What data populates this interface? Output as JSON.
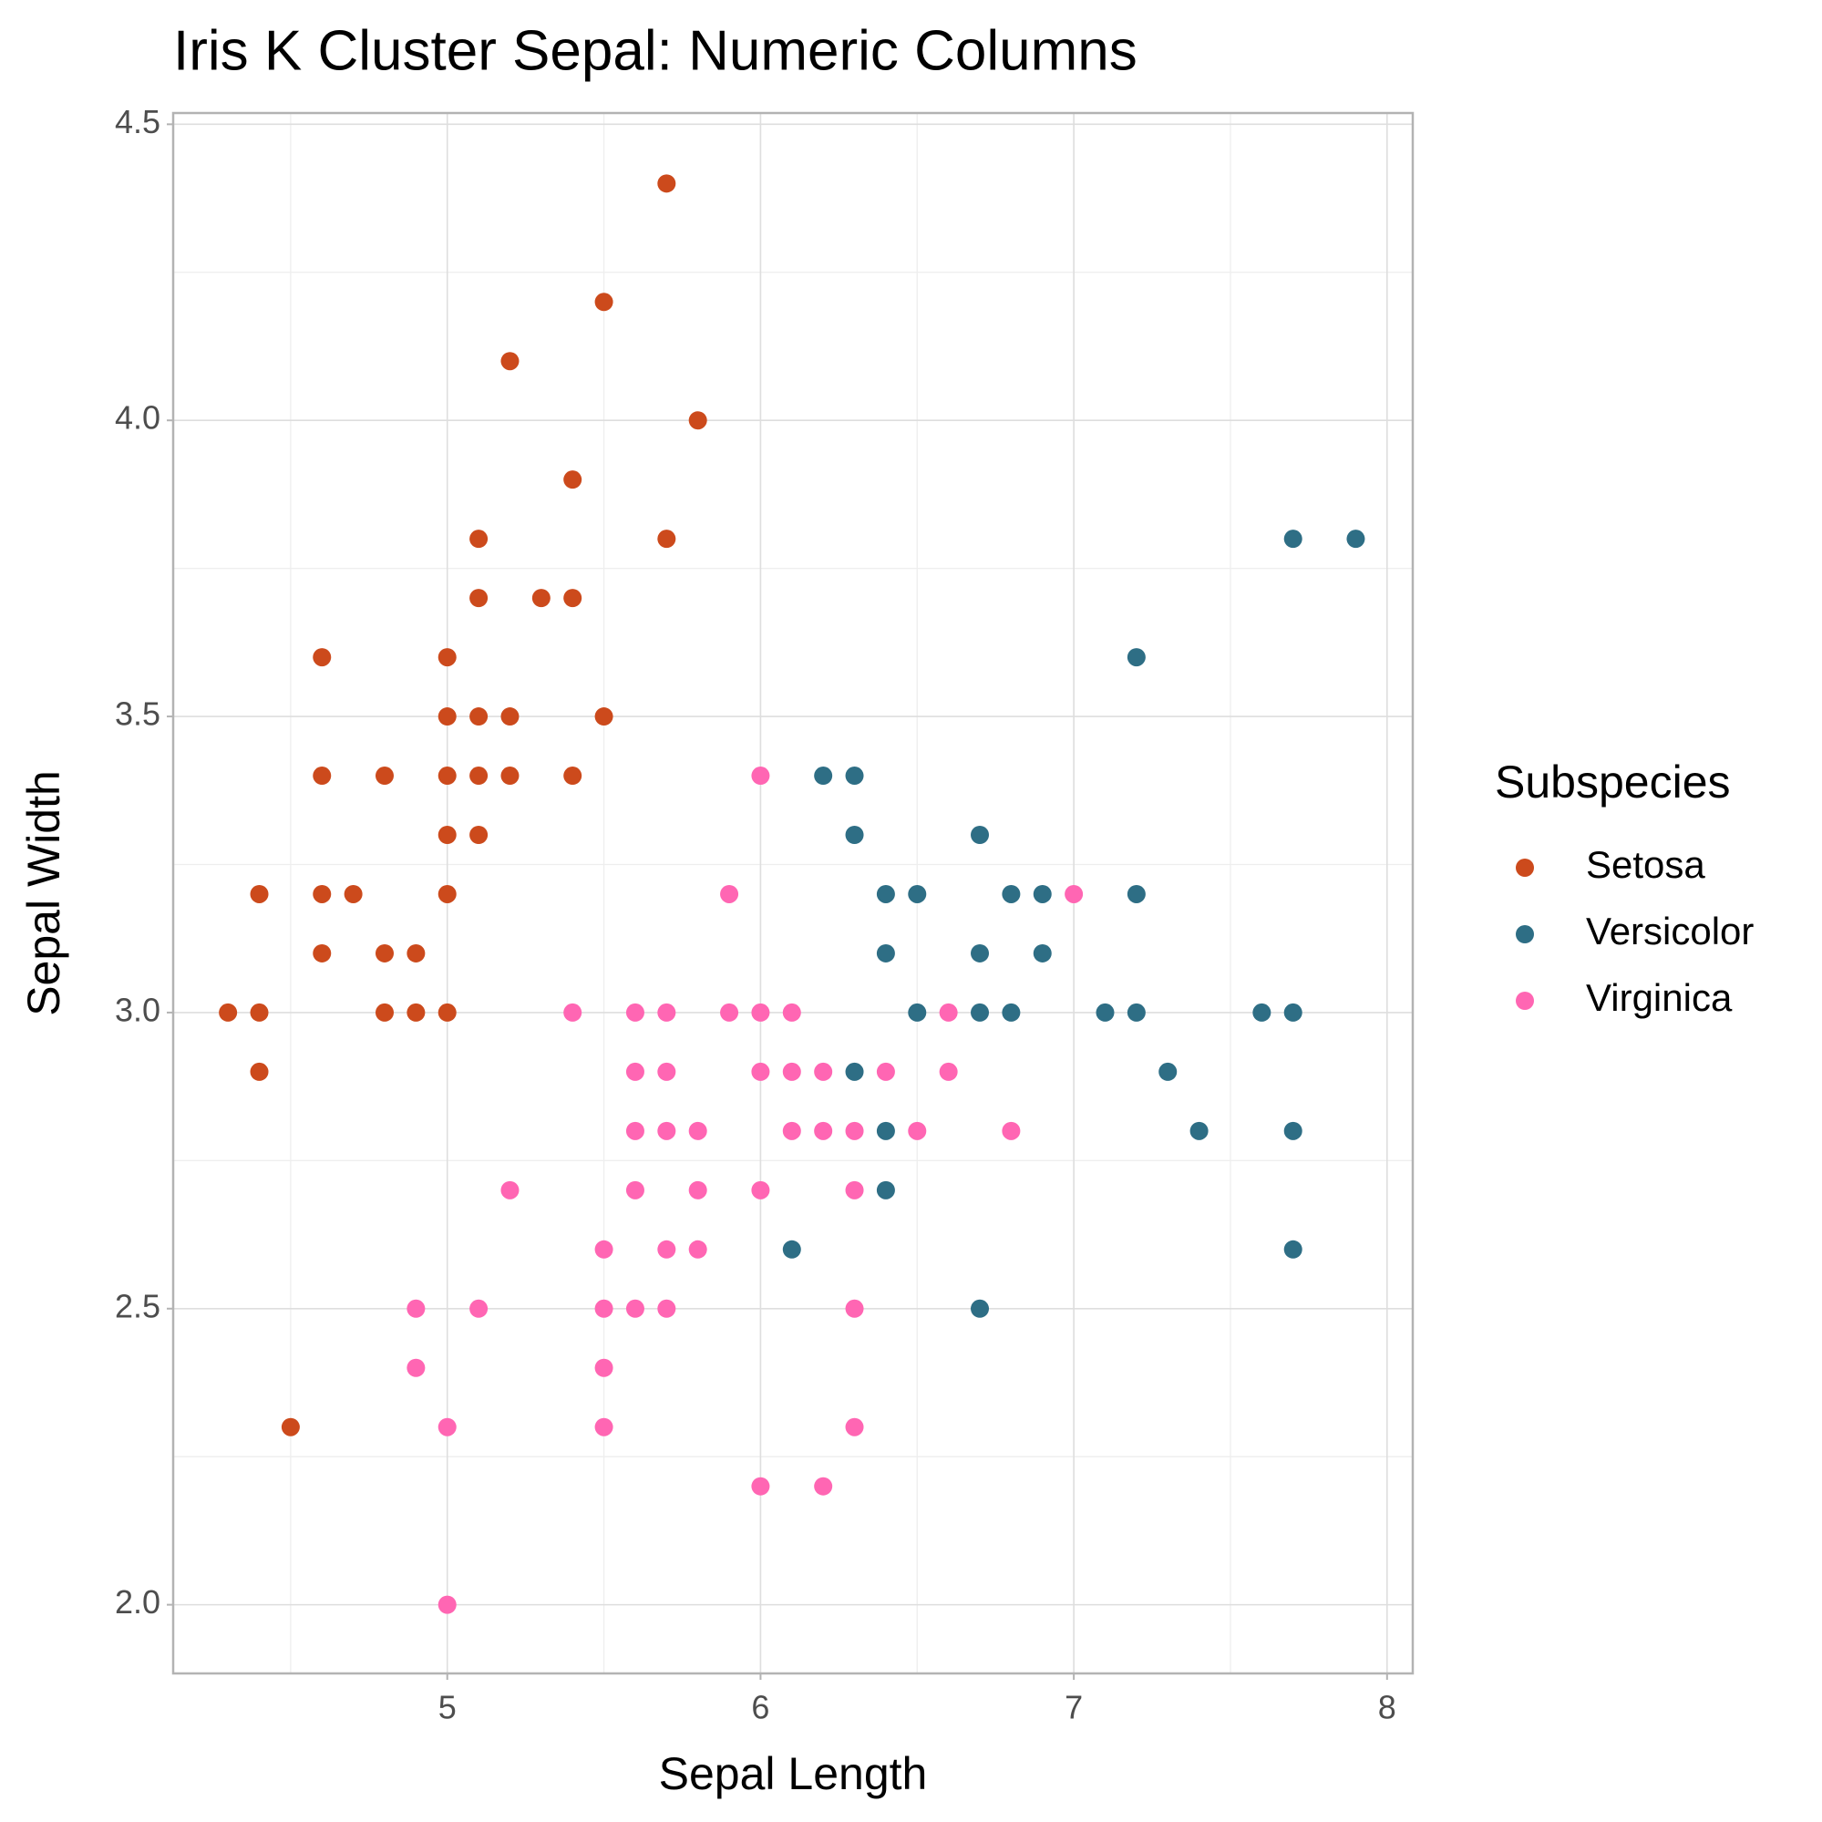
{
  "chart_data": {
    "type": "scatter",
    "title": "Iris K Cluster Sepal: Numeric Columns",
    "x_label": "Sepal Length",
    "y_label": "Sepal Width",
    "legend_title": "Subspecies",
    "legend_position": "right",
    "grid": true,
    "minor_grid": true,
    "xlim": [
      4.125,
      8.082
    ],
    "ylim": [
      1.884,
      4.519
    ],
    "xticks": [
      5,
      6,
      7,
      8
    ],
    "yticks": [
      {
        "value": 2,
        "label": "2.0"
      },
      2.5,
      {
        "value": 3,
        "label": "3.0"
      },
      3.5,
      {
        "value": 4,
        "label": "4.0"
      },
      4.5
    ],
    "series": [
      {
        "name": "Setosa",
        "color": "#cc4a1c",
        "x": [
          5.7,
          5.5,
          5.2,
          5.8,
          5.4,
          5.7,
          5.1,
          5.1,
          5.3,
          5.4,
          4.6,
          5.0,
          5.0,
          5.1,
          5.2,
          5.5,
          4.6,
          4.8,
          5.0,
          5.1,
          5.2,
          5.4,
          5.0,
          5.1,
          4.4,
          4.6,
          4.7,
          5.0,
          4.6,
          4.8,
          4.9,
          4.3,
          4.4,
          4.8,
          4.9,
          5.0,
          4.4,
          4.5
        ],
        "y": [
          4.4,
          4.2,
          4.1,
          4.0,
          3.9,
          3.8,
          3.8,
          3.7,
          3.7,
          3.7,
          3.6,
          3.6,
          3.5,
          3.5,
          3.5,
          3.5,
          3.4,
          3.4,
          3.4,
          3.4,
          3.4,
          3.4,
          3.3,
          3.3,
          3.2,
          3.2,
          3.2,
          3.2,
          3.1,
          3.1,
          3.1,
          3.0,
          3.0,
          3.0,
          3.0,
          3.0,
          2.9,
          2.3
        ]
      },
      {
        "name": "Versicolor",
        "color": "#2e6e85",
        "x": [
          7.7,
          7.9,
          7.2,
          6.2,
          6.3,
          6.3,
          6.7,
          6.4,
          6.5,
          6.8,
          6.9,
          7.2,
          6.4,
          6.7,
          6.9,
          6.5,
          6.7,
          6.8,
          7.1,
          7.2,
          7.6,
          7.7,
          6.3,
          7.3,
          6.4,
          7.4,
          7.7,
          6.4,
          6.1,
          7.7,
          6.7
        ],
        "y": [
          3.8,
          3.8,
          3.6,
          3.4,
          3.4,
          3.3,
          3.3,
          3.2,
          3.2,
          3.2,
          3.2,
          3.2,
          3.1,
          3.1,
          3.1,
          3.0,
          3.0,
          3.0,
          3.0,
          3.0,
          3.0,
          3.0,
          2.9,
          2.9,
          2.8,
          2.8,
          2.8,
          2.7,
          2.6,
          2.6,
          2.5
        ]
      },
      {
        "name": "Virginica",
        "color": "#ff66b3",
        "x": [
          6.0,
          5.9,
          7.0,
          5.4,
          5.6,
          5.7,
          5.9,
          6.0,
          6.1,
          6.6,
          5.6,
          5.7,
          6.0,
          6.1,
          6.2,
          6.4,
          6.6,
          5.6,
          5.7,
          5.8,
          6.1,
          6.2,
          6.3,
          6.5,
          6.8,
          5.2,
          5.6,
          5.8,
          6.0,
          6.3,
          5.5,
          5.7,
          5.8,
          4.9,
          5.1,
          5.5,
          5.6,
          5.7,
          6.3,
          4.9,
          5.5,
          5.0,
          5.5,
          6.3,
          6.0,
          6.2,
          5.0
        ],
        "y": [
          3.4,
          3.2,
          3.2,
          3.0,
          3.0,
          3.0,
          3.0,
          3.0,
          3.0,
          3.0,
          2.9,
          2.9,
          2.9,
          2.9,
          2.9,
          2.9,
          2.9,
          2.8,
          2.8,
          2.8,
          2.8,
          2.8,
          2.8,
          2.8,
          2.8,
          2.7,
          2.7,
          2.7,
          2.7,
          2.7,
          2.6,
          2.6,
          2.6,
          2.5,
          2.5,
          2.5,
          2.5,
          2.5,
          2.5,
          2.4,
          2.4,
          2.3,
          2.3,
          2.3,
          2.2,
          2.2,
          2.0
        ]
      }
    ]
  }
}
